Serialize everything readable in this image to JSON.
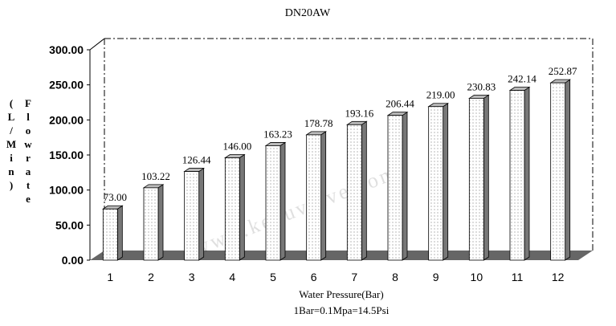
{
  "chart_data": {
    "type": "bar",
    "title": "DN20AW",
    "xlabel": "Water Pressure(Bar)",
    "xlabel_note": "1Bar=0.1Mpa=14.5Psi",
    "ylabel_left": "(L/Min)",
    "ylabel_right": "Flowrate",
    "categories": [
      "1",
      "2",
      "3",
      "4",
      "5",
      "6",
      "7",
      "8",
      "9",
      "10",
      "11",
      "12"
    ],
    "values": [
      73.0,
      103.22,
      126.44,
      146.0,
      163.23,
      178.78,
      193.16,
      206.44,
      219.0,
      230.83,
      242.14,
      252.87
    ],
    "data_labels": [
      "73.00",
      "103.22",
      "126.44",
      "146.00",
      "163.23",
      "178.78",
      "193.16",
      "206.44",
      "219.00",
      "230.83",
      "242.14",
      "252.87"
    ],
    "yticks": [
      "0.00",
      "50.00",
      "100.00",
      "150.00",
      "200.00",
      "250.00",
      "300.00"
    ],
    "ylim": [
      0,
      300
    ],
    "grid": false,
    "legend": "none",
    "bar_fill": "#ffffff",
    "bar_side": "#777777",
    "floor_color": "#666666",
    "watermark": "www.keyuvalve.com"
  }
}
